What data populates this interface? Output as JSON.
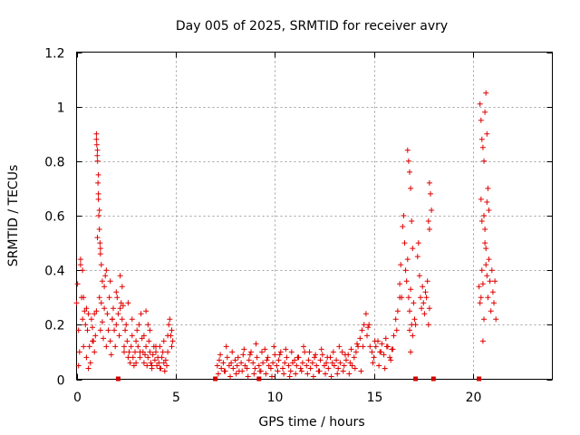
{
  "colors": {
    "series": "#e00000",
    "gap_marker": "#d00000",
    "grid": "#a0a0a0"
  },
  "chart_data": {
    "type": "scatter",
    "title": "Day 005 of 2025, SRMTID for receiver avry",
    "xlabel": "GPS time / hours",
    "ylabel": "SRMTID / TECUs",
    "xlim": [
      0,
      24
    ],
    "ylim": [
      0,
      1.2
    ],
    "x_ticks": [
      0,
      5,
      10,
      15,
      20
    ],
    "x_tick_labels": [
      "0",
      "5",
      "10",
      "15",
      "20"
    ],
    "y_ticks": [
      0,
      0.2,
      0.4,
      0.6,
      0.8,
      1.0,
      1.2
    ],
    "y_tick_labels": [
      "0",
      "0.2",
      "0.4",
      "0.6",
      "0.8",
      "1",
      "1.2"
    ],
    "grid": true,
    "marker": "plus",
    "data_gaps_at_hours": [
      2.1,
      7.0,
      9.2,
      17.1,
      18.0,
      20.3
    ],
    "series": [
      {
        "name": "SRMTID",
        "x": [
          0.0,
          0.05,
          0.1,
          0.15,
          0.2,
          0.25,
          0.3,
          0.35,
          0.4,
          0.45,
          0.5,
          0.55,
          0.6,
          0.65,
          0.7,
          0.75,
          0.8,
          0.85,
          0.9,
          0.95,
          1.0,
          1.05,
          1.1,
          1.15,
          1.2,
          1.25,
          1.3,
          1.35,
          1.4,
          1.45,
          1.5,
          1.55,
          1.6,
          1.65,
          1.7,
          1.75,
          1.8,
          1.85,
          1.9,
          1.95,
          2.0,
          2.05,
          2.1,
          2.15,
          2.2,
          2.25,
          2.3,
          2.35,
          2.4,
          2.45,
          2.5,
          2.55,
          2.6,
          2.65,
          2.7,
          2.75,
          2.8,
          2.85,
          2.9,
          2.95,
          3.0,
          3.05,
          3.1,
          3.15,
          3.2,
          3.25,
          3.3,
          3.35,
          3.4,
          3.45,
          3.5,
          3.55,
          3.6,
          3.65,
          3.7,
          3.75,
          3.8,
          3.85,
          3.9,
          3.95,
          4.0,
          4.05,
          4.1,
          4.15,
          4.2,
          4.25,
          4.3,
          4.35,
          4.4,
          4.45,
          4.5,
          4.55,
          4.6,
          4.65,
          4.7,
          4.75,
          4.8,
          4.85,
          0.1,
          0.2,
          0.3,
          0.35,
          0.5,
          0.6,
          0.8,
          0.9,
          1.0,
          1.05,
          1.1,
          1.15,
          1.2,
          1.25,
          1.3,
          1.4,
          1.5,
          1.7,
          1.8,
          2.0,
          2.2,
          2.3,
          2.4,
          2.6,
          2.8,
          3.0,
          3.2,
          3.4,
          3.5,
          3.6,
          3.7,
          3.8,
          4.0,
          4.2,
          4.4,
          4.6,
          4.8,
          1.0,
          1.02,
          1.04,
          1.06,
          1.08,
          1.1,
          1.12,
          1.15,
          1.18,
          1.2,
          7.1,
          7.2,
          7.3,
          7.4,
          7.5,
          7.6,
          7.7,
          7.8,
          7.9,
          8.0,
          8.1,
          8.2,
          8.3,
          8.4,
          8.5,
          8.6,
          8.7,
          8.8,
          8.9,
          9.0,
          9.1,
          9.2,
          9.3,
          9.4,
          9.5,
          9.6,
          9.7,
          9.8,
          9.9,
          10.0,
          10.1,
          10.2,
          10.3,
          10.4,
          10.5,
          10.6,
          10.7,
          10.8,
          10.9,
          11.0,
          11.1,
          11.2,
          11.3,
          11.4,
          11.5,
          11.6,
          11.7,
          11.8,
          11.9,
          12.0,
          12.1,
          12.2,
          12.3,
          12.4,
          12.5,
          12.6,
          12.7,
          12.8,
          12.9,
          13.0,
          13.1,
          13.2,
          13.3,
          13.4,
          13.5,
          13.6,
          13.7,
          13.8,
          13.9,
          14.0,
          14.1,
          14.2,
          14.3,
          14.4,
          14.5,
          14.6,
          14.7,
          14.8,
          14.9,
          15.0,
          15.1,
          15.2,
          15.3,
          15.4,
          15.5,
          15.6,
          15.7,
          15.8,
          15.9,
          16.0,
          16.1,
          16.2,
          16.3,
          7.15,
          7.45,
          7.75,
          8.05,
          8.35,
          8.65,
          8.95,
          9.25,
          9.55,
          9.85,
          10.15,
          10.45,
          10.75,
          11.05,
          11.35,
          11.65,
          11.95,
          12.25,
          12.55,
          12.85,
          13.15,
          13.45,
          13.75,
          14.05,
          14.35,
          14.65,
          14.95,
          15.25,
          15.55,
          15.85,
          16.15,
          7.25,
          7.55,
          7.85,
          8.15,
          8.45,
          8.75,
          9.05,
          9.35,
          9.65,
          9.95,
          10.25,
          10.55,
          10.85,
          11.15,
          11.45,
          11.75,
          12.05,
          12.35,
          12.65,
          12.95,
          13.25,
          13.55,
          13.85,
          14.15,
          14.45,
          14.75,
          15.05,
          15.35,
          15.65,
          15.95,
          16.3,
          16.35,
          16.4,
          16.45,
          16.5,
          16.55,
          16.6,
          16.65,
          16.7,
          16.75,
          16.8,
          16.85,
          16.9,
          16.95,
          17.0,
          17.05,
          17.1,
          16.7,
          16.75,
          16.8,
          16.85,
          16.9,
          16.95,
          16.8,
          16.85,
          17.2,
          17.25,
          17.3,
          17.35,
          17.4,
          17.45,
          17.5,
          17.55,
          17.6,
          17.65,
          17.7,
          17.75,
          17.8,
          17.8,
          17.85,
          17.9,
          17.75,
          17.8,
          20.3,
          20.35,
          20.4,
          20.45,
          20.5,
          20.55,
          20.6,
          20.65,
          20.7,
          20.75,
          20.8,
          20.85,
          20.9,
          20.95,
          21.0,
          21.05,
          21.1,
          21.15,
          20.35,
          20.4,
          20.45,
          20.5,
          20.55,
          20.6,
          20.65,
          20.7,
          20.75,
          20.8,
          20.5,
          20.55,
          20.6,
          20.65,
          20.7,
          20.4,
          20.45
        ],
        "y": [
          0.28,
          0.35,
          0.18,
          0.1,
          0.42,
          0.3,
          0.22,
          0.12,
          0.25,
          0.2,
          0.08,
          0.18,
          0.24,
          0.12,
          0.06,
          0.22,
          0.19,
          0.14,
          0.24,
          0.16,
          0.25,
          0.52,
          0.68,
          0.3,
          0.18,
          0.28,
          0.21,
          0.15,
          0.34,
          0.38,
          0.12,
          0.24,
          0.18,
          0.3,
          0.14,
          0.09,
          0.22,
          0.26,
          0.18,
          0.12,
          0.2,
          0.3,
          0.24,
          0.16,
          0.38,
          0.28,
          0.22,
          0.27,
          0.12,
          0.18,
          0.2,
          0.14,
          0.08,
          0.1,
          0.06,
          0.12,
          0.16,
          0.08,
          0.05,
          0.1,
          0.14,
          0.18,
          0.12,
          0.2,
          0.08,
          0.24,
          0.15,
          0.1,
          0.06,
          0.09,
          0.12,
          0.05,
          0.08,
          0.14,
          0.1,
          0.06,
          0.04,
          0.09,
          0.12,
          0.07,
          0.1,
          0.05,
          0.08,
          0.06,
          0.12,
          0.04,
          0.08,
          0.1,
          0.06,
          0.03,
          0.07,
          0.05,
          0.1,
          0.2,
          0.22,
          0.16,
          0.12,
          0.14,
          0.05,
          0.44,
          0.4,
          0.3,
          0.26,
          0.04,
          0.14,
          0.1,
          0.88,
          0.84,
          0.75,
          0.62,
          0.48,
          0.42,
          0.36,
          0.26,
          0.4,
          0.36,
          0.22,
          0.32,
          0.26,
          0.34,
          0.1,
          0.28,
          0.22,
          0.06,
          0.1,
          0.16,
          0.25,
          0.2,
          0.18,
          0.05,
          0.12,
          0.04,
          0.14,
          0.16,
          0.18,
          0.9,
          0.86,
          0.82,
          0.8,
          0.72,
          0.66,
          0.6,
          0.55,
          0.5,
          0.46,
          0.05,
          0.07,
          0.04,
          0.06,
          0.03,
          0.08,
          0.05,
          0.06,
          0.04,
          0.07,
          0.05,
          0.03,
          0.06,
          0.09,
          0.05,
          0.04,
          0.07,
          0.1,
          0.06,
          0.04,
          0.08,
          0.05,
          0.03,
          0.06,
          0.11,
          0.07,
          0.05,
          0.04,
          0.06,
          0.09,
          0.05,
          0.07,
          0.1,
          0.04,
          0.06,
          0.08,
          0.05,
          0.03,
          0.06,
          0.07,
          0.05,
          0.08,
          0.04,
          0.06,
          0.1,
          0.05,
          0.07,
          0.04,
          0.06,
          0.08,
          0.05,
          0.03,
          0.07,
          0.09,
          0.05,
          0.06,
          0.04,
          0.08,
          0.06,
          0.05,
          0.07,
          0.04,
          0.06,
          0.1,
          0.05,
          0.07,
          0.09,
          0.06,
          0.05,
          0.08,
          0.1,
          0.12,
          0.15,
          0.18,
          0.2,
          0.24,
          0.19,
          0.12,
          0.1,
          0.08,
          0.12,
          0.14,
          0.1,
          0.13,
          0.09,
          0.15,
          0.12,
          0.08,
          0.11,
          0.16,
          0.22,
          0.25,
          0.3,
          0.02,
          0.03,
          0.01,
          0.02,
          0.03,
          0.01,
          0.02,
          0.03,
          0.02,
          0.01,
          0.03,
          0.02,
          0.01,
          0.02,
          0.03,
          0.02,
          0.01,
          0.03,
          0.02,
          0.01,
          0.02,
          0.03,
          0.02,
          0.04,
          0.03,
          0.16,
          0.06,
          0.05,
          0.04,
          0.07,
          0.18,
          0.09,
          0.12,
          0.1,
          0.08,
          0.11,
          0.09,
          0.13,
          0.1,
          0.08,
          0.12,
          0.09,
          0.11,
          0.1,
          0.08,
          0.12,
          0.1,
          0.09,
          0.11,
          0.08,
          0.1,
          0.12,
          0.09,
          0.11,
          0.13,
          0.12,
          0.2,
          0.14,
          0.1,
          0.12,
          0.11,
          0.35,
          0.42,
          0.3,
          0.56,
          0.6,
          0.5,
          0.4,
          0.36,
          0.44,
          0.3,
          0.25,
          0.33,
          0.2,
          0.16,
          0.28,
          0.22,
          0.2,
          0.84,
          0.8,
          0.76,
          0.7,
          0.58,
          0.48,
          0.18,
          0.1,
          0.45,
          0.5,
          0.38,
          0.3,
          0.26,
          0.34,
          0.28,
          0.24,
          0.32,
          0.3,
          0.36,
          0.2,
          0.26,
          0.72,
          0.68,
          0.62,
          0.58,
          0.55,
          0.34,
          0.28,
          0.3,
          0.4,
          0.35,
          0.6,
          0.5,
          0.42,
          0.38,
          0.3,
          0.44,
          0.36,
          0.25,
          0.4,
          0.32,
          0.28,
          0.36,
          0.22,
          1.01,
          0.95,
          0.88,
          0.85,
          0.8,
          0.98,
          1.05,
          0.9,
          0.7,
          0.62,
          0.14,
          0.22,
          0.55,
          0.48,
          0.65,
          0.66,
          0.58
        ]
      }
    ]
  }
}
